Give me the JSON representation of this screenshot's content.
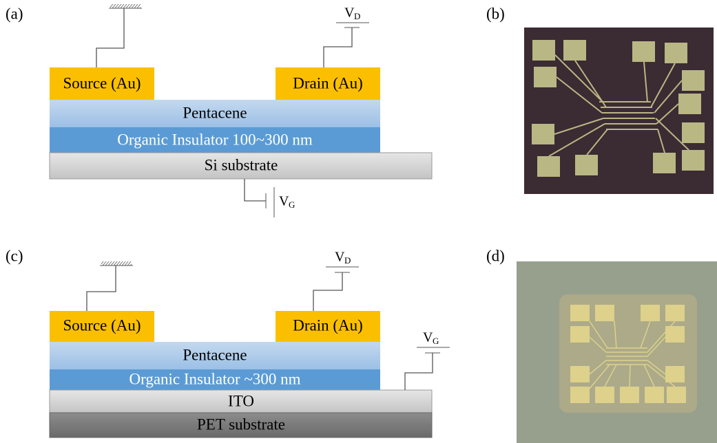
{
  "panels": [
    {
      "label": "(a)",
      "layers": [
        "Source (Au)",
        "Drain (Au)",
        "Pentacene",
        "Organic Insulator  100~300 nm",
        "Si substrate"
      ],
      "drain_voltage": {
        "symbol": "V",
        "subscript": "D"
      },
      "gate_voltage": {
        "symbol": "V",
        "subscript": "G"
      }
    },
    {
      "label": "(b)"
    },
    {
      "label": "(c)",
      "layers": [
        "Source (Au)",
        "Drain (Au)",
        "Pentacene",
        "Organic Insulator  ~300 nm",
        "ITO",
        "PET substrate"
      ],
      "drain_voltage": {
        "symbol": "V",
        "subscript": "D"
      },
      "gate_voltage": {
        "symbol": "V",
        "subscript": "G"
      }
    },
    {
      "label": "(d)"
    }
  ]
}
